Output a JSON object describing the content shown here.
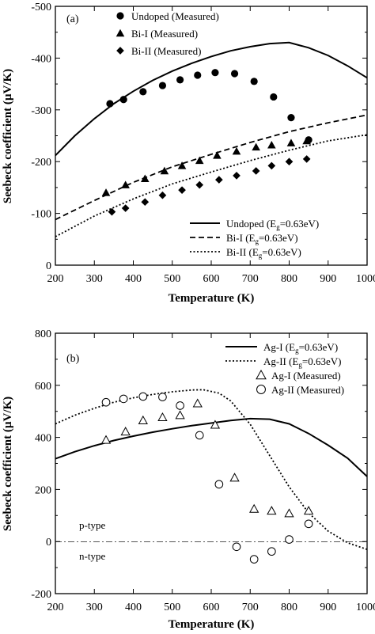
{
  "chart_data": [
    {
      "type": "line",
      "panel_label": "(a)",
      "xlabel": "Temperature (K)",
      "ylabel": "Seebeck coefficient (µV/K)",
      "xlim": [
        200,
        1000
      ],
      "ylim": [
        0,
        -500
      ],
      "xticks": [
        200,
        300,
        400,
        500,
        600,
        700,
        800,
        900,
        1000
      ],
      "yticks": [
        0,
        -100,
        -200,
        -300,
        -400,
        -500
      ],
      "series": [
        {
          "name": "Undoped (Measured)",
          "kind": "scatter",
          "marker": "filled-circle",
          "x": [
            340,
            375,
            425,
            475,
            520,
            565,
            610,
            660,
            710,
            760,
            805,
            850
          ],
          "y": [
            -312,
            -320,
            -335,
            -347,
            -358,
            -367,
            -372,
            -370,
            -355,
            -325,
            -285,
            -242
          ]
        },
        {
          "name": "Bi-I (Measured)",
          "kind": "scatter",
          "marker": "filled-triangle",
          "x": [
            330,
            380,
            430,
            480,
            525,
            570,
            615,
            665,
            715,
            755,
            805,
            845
          ],
          "y": [
            -140,
            -155,
            -167,
            -182,
            -192,
            -202,
            -212,
            -220,
            -228,
            -232,
            -236,
            -240
          ]
        },
        {
          "name": "Bi-II (Measured)",
          "kind": "scatter",
          "marker": "filled-diamond",
          "x": [
            345,
            380,
            430,
            475,
            525,
            570,
            620,
            665,
            715,
            755,
            800,
            845
          ],
          "y": [
            -103,
            -110,
            -122,
            -135,
            -145,
            -155,
            -165,
            -173,
            -182,
            -192,
            -200,
            -205
          ]
        },
        {
          "name": "Undoped (E",
          "sub": "g",
          "name_suffix": "=0.63eV)",
          "kind": "line",
          "dash": "solid",
          "x": [
            200,
            250,
            300,
            350,
            400,
            450,
            500,
            550,
            600,
            650,
            700,
            750,
            800,
            850,
            900,
            950,
            1000
          ],
          "y": [
            -212,
            -250,
            -283,
            -312,
            -336,
            -357,
            -375,
            -390,
            -403,
            -414,
            -422,
            -428,
            -430,
            -420,
            -405,
            -385,
            -362
          ]
        },
        {
          "name": "Bi-I (E",
          "sub": "g",
          "name_suffix": "=0.63eV)",
          "kind": "line",
          "dash": "dashed",
          "x": [
            200,
            300,
            400,
            500,
            600,
            700,
            800,
            900,
            1000
          ],
          "y": [
            -88,
            -125,
            -160,
            -190,
            -214,
            -237,
            -258,
            -275,
            -290
          ]
        },
        {
          "name": "Bi-II (E",
          "sub": "g",
          "name_suffix": "=0.63eV)",
          "kind": "line",
          "dash": "dotted",
          "x": [
            200,
            300,
            400,
            500,
            600,
            700,
            800,
            900,
            1000
          ],
          "y": [
            -55,
            -95,
            -128,
            -157,
            -180,
            -202,
            -222,
            -240,
            -252
          ]
        }
      ]
    },
    {
      "type": "line",
      "panel_label": "(b)",
      "xlabel": "Temperature (K)",
      "ylabel": "Seebeck coefficient (µV/K)",
      "xlim": [
        200,
        1000
      ],
      "ylim": [
        -200,
        800
      ],
      "xticks": [
        200,
        300,
        400,
        500,
        600,
        700,
        800,
        900,
        1000
      ],
      "yticks": [
        -200,
        0,
        200,
        400,
        600,
        800
      ],
      "annotations": {
        "above_zero": "p-type",
        "below_zero": "n-type"
      },
      "series": [
        {
          "name": "Ag-I (E",
          "sub": "g",
          "name_suffix": "=0.63eV)",
          "kind": "line",
          "dash": "solid",
          "x": [
            200,
            250,
            300,
            350,
            400,
            450,
            500,
            550,
            600,
            650,
            700,
            750,
            800,
            850,
            900,
            950,
            1000
          ],
          "y": [
            318,
            345,
            368,
            388,
            405,
            420,
            433,
            445,
            455,
            465,
            472,
            470,
            452,
            415,
            370,
            320,
            250
          ]
        },
        {
          "name": "Ag-II (E",
          "sub": "g",
          "name_suffix": "=0.63eV)",
          "kind": "line",
          "dash": "dotted",
          "x": [
            200,
            250,
            300,
            350,
            400,
            450,
            500,
            550,
            580,
            620,
            650,
            700,
            750,
            800,
            850,
            900,
            950,
            1000
          ],
          "y": [
            452,
            485,
            512,
            535,
            552,
            565,
            575,
            582,
            583,
            570,
            540,
            450,
            330,
            210,
            110,
            40,
            -5,
            -30
          ]
        },
        {
          "name": "Ag-I (Measured)",
          "kind": "scatter",
          "marker": "open-triangle",
          "x": [
            330,
            380,
            425,
            475,
            520,
            565,
            610,
            660,
            710,
            755,
            800,
            850
          ],
          "y": [
            390,
            422,
            465,
            477,
            485,
            530,
            448,
            245,
            125,
            118,
            108,
            118
          ]
        },
        {
          "name": "Ag-II (Measured)",
          "kind": "scatter",
          "marker": "open-circle",
          "x": [
            330,
            375,
            425,
            475,
            520,
            570,
            620,
            665,
            710,
            755,
            800,
            850
          ],
          "y": [
            535,
            548,
            557,
            555,
            522,
            408,
            220,
            -20,
            -68,
            -38,
            8,
            68
          ]
        }
      ]
    }
  ]
}
